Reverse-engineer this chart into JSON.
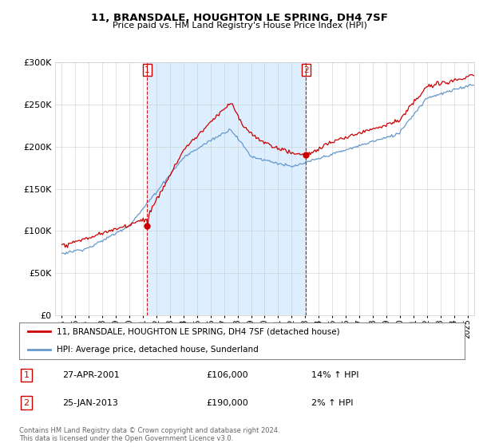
{
  "title": "11, BRANSDALE, HOUGHTON LE SPRING, DH4 7SF",
  "subtitle": "Price paid vs. HM Land Registry's House Price Index (HPI)",
  "legend_line1": "11, BRANSDALE, HOUGHTON LE SPRING, DH4 7SF (detached house)",
  "legend_line2": "HPI: Average price, detached house, Sunderland",
  "marker1_date": "27-APR-2001",
  "marker1_price": 106000,
  "marker1_x": 2001.32,
  "marker2_date": "25-JAN-2013",
  "marker2_price": 190000,
  "marker2_x": 2013.07,
  "table_row1": [
    "1",
    "27-APR-2001",
    "£106,000",
    "14% ↑ HPI"
  ],
  "table_row2": [
    "2",
    "25-JAN-2013",
    "£190,000",
    "2% ↑ HPI"
  ],
  "footer": "Contains HM Land Registry data © Crown copyright and database right 2024.\nThis data is licensed under the Open Government Licence v3.0.",
  "red_color": "#cc0000",
  "blue_color": "#6699cc",
  "shade_color": "#ddeeff",
  "ylim": [
    0,
    300000
  ],
  "ytick_max": 300000,
  "xlim_start": 1994.5,
  "xlim_end": 2025.5
}
